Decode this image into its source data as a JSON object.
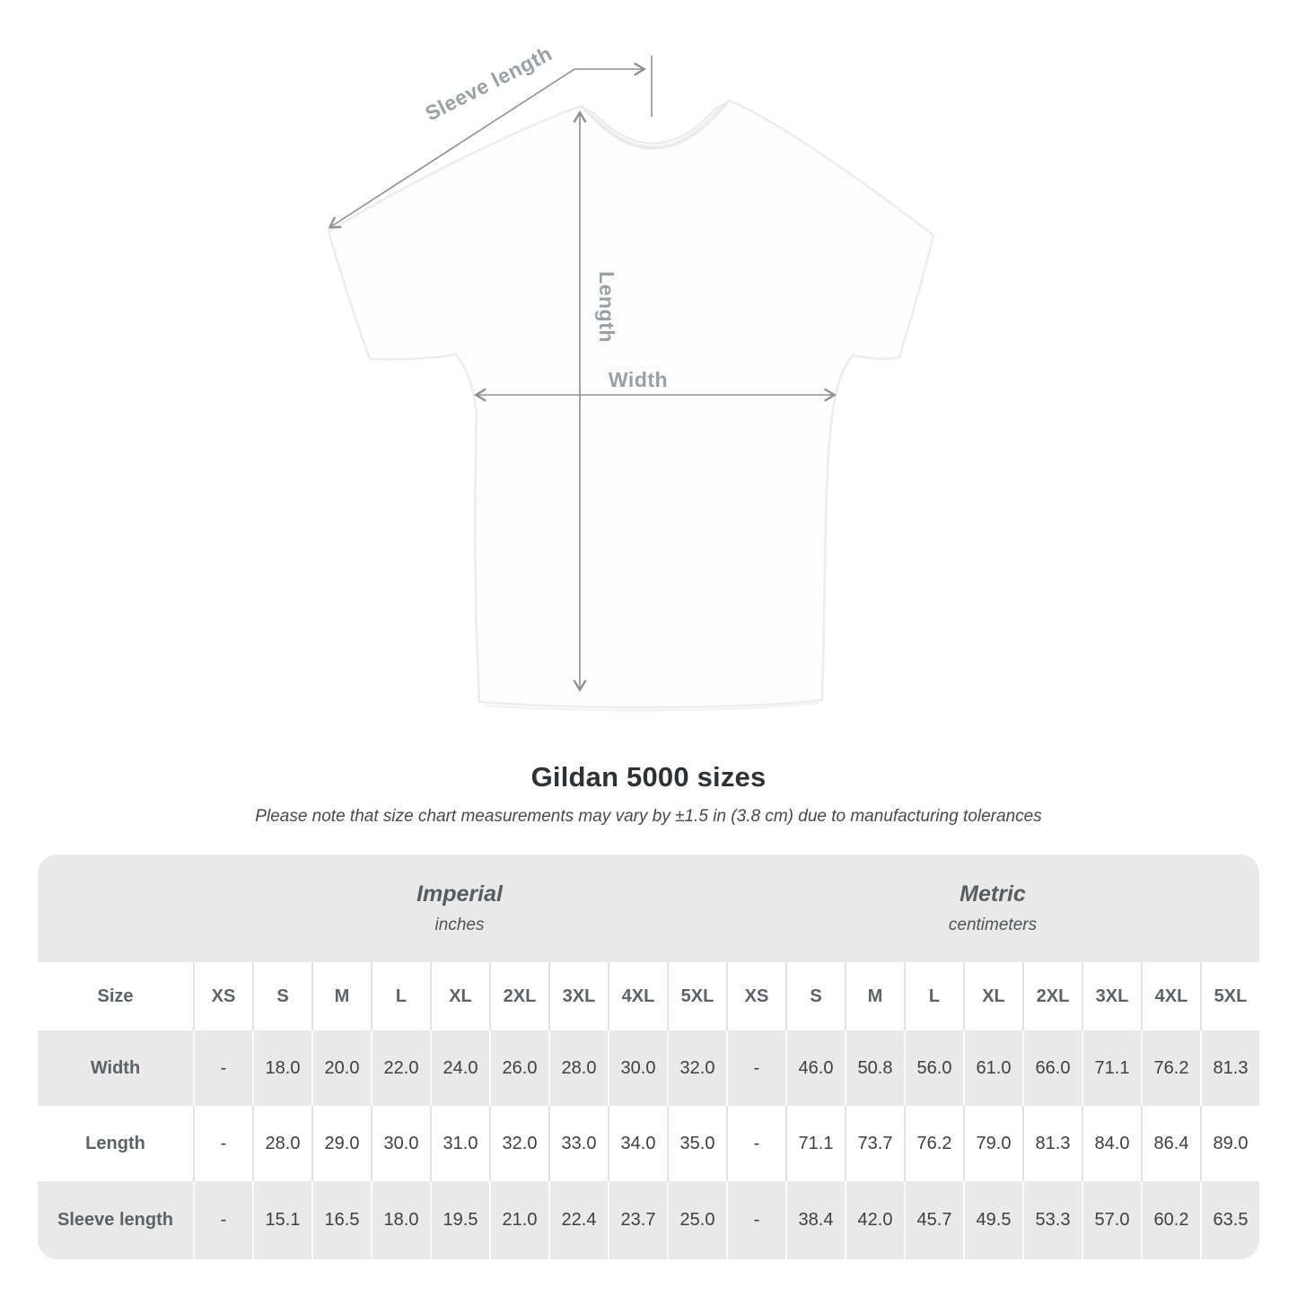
{
  "diagram": {
    "sleeve_length_label": "Sleeve length",
    "length_label": "Length",
    "width_label": "Width"
  },
  "title": "Gildan 5000 sizes",
  "subtitle": "Please note that size chart measurements may vary by ±1.5 in (3.8 cm) due to manufacturing tolerances",
  "table": {
    "size_label": "Size",
    "sizes": [
      "XS",
      "S",
      "M",
      "L",
      "XL",
      "2XL",
      "3XL",
      "4XL",
      "5XL"
    ],
    "unit_sections": [
      {
        "name": "Imperial",
        "unit": "inches"
      },
      {
        "name": "Metric",
        "unit": "centimeters"
      }
    ],
    "rows": [
      {
        "label": "Width",
        "imperial": [
          "-",
          "18.0",
          "20.0",
          "22.0",
          "24.0",
          "26.0",
          "28.0",
          "30.0",
          "32.0"
        ],
        "metric": [
          "-",
          "46.0",
          "50.8",
          "56.0",
          "61.0",
          "66.0",
          "71.1",
          "76.2",
          "81.3"
        ]
      },
      {
        "label": "Length",
        "imperial": [
          "-",
          "28.0",
          "29.0",
          "30.0",
          "31.0",
          "32.0",
          "33.0",
          "34.0",
          "35.0"
        ],
        "metric": [
          "-",
          "71.1",
          "73.7",
          "76.2",
          "79.0",
          "81.3",
          "84.0",
          "86.4",
          "89.0"
        ]
      },
      {
        "label": "Sleeve length",
        "imperial": [
          "-",
          "15.1",
          "16.5",
          "18.0",
          "19.5",
          "21.0",
          "22.4",
          "23.7",
          "25.0"
        ],
        "metric": [
          "-",
          "38.4",
          "42.0",
          "45.7",
          "49.5",
          "53.3",
          "57.0",
          "60.2",
          "63.5"
        ]
      }
    ]
  },
  "colors": {
    "table_bg": "#ebebeb",
    "row_alt_bg": "#ffffff",
    "header_text": "#5c6267",
    "value_text": "#3d4043",
    "diagram_label": "#9aa0a4",
    "arrow": "#8d9194"
  }
}
